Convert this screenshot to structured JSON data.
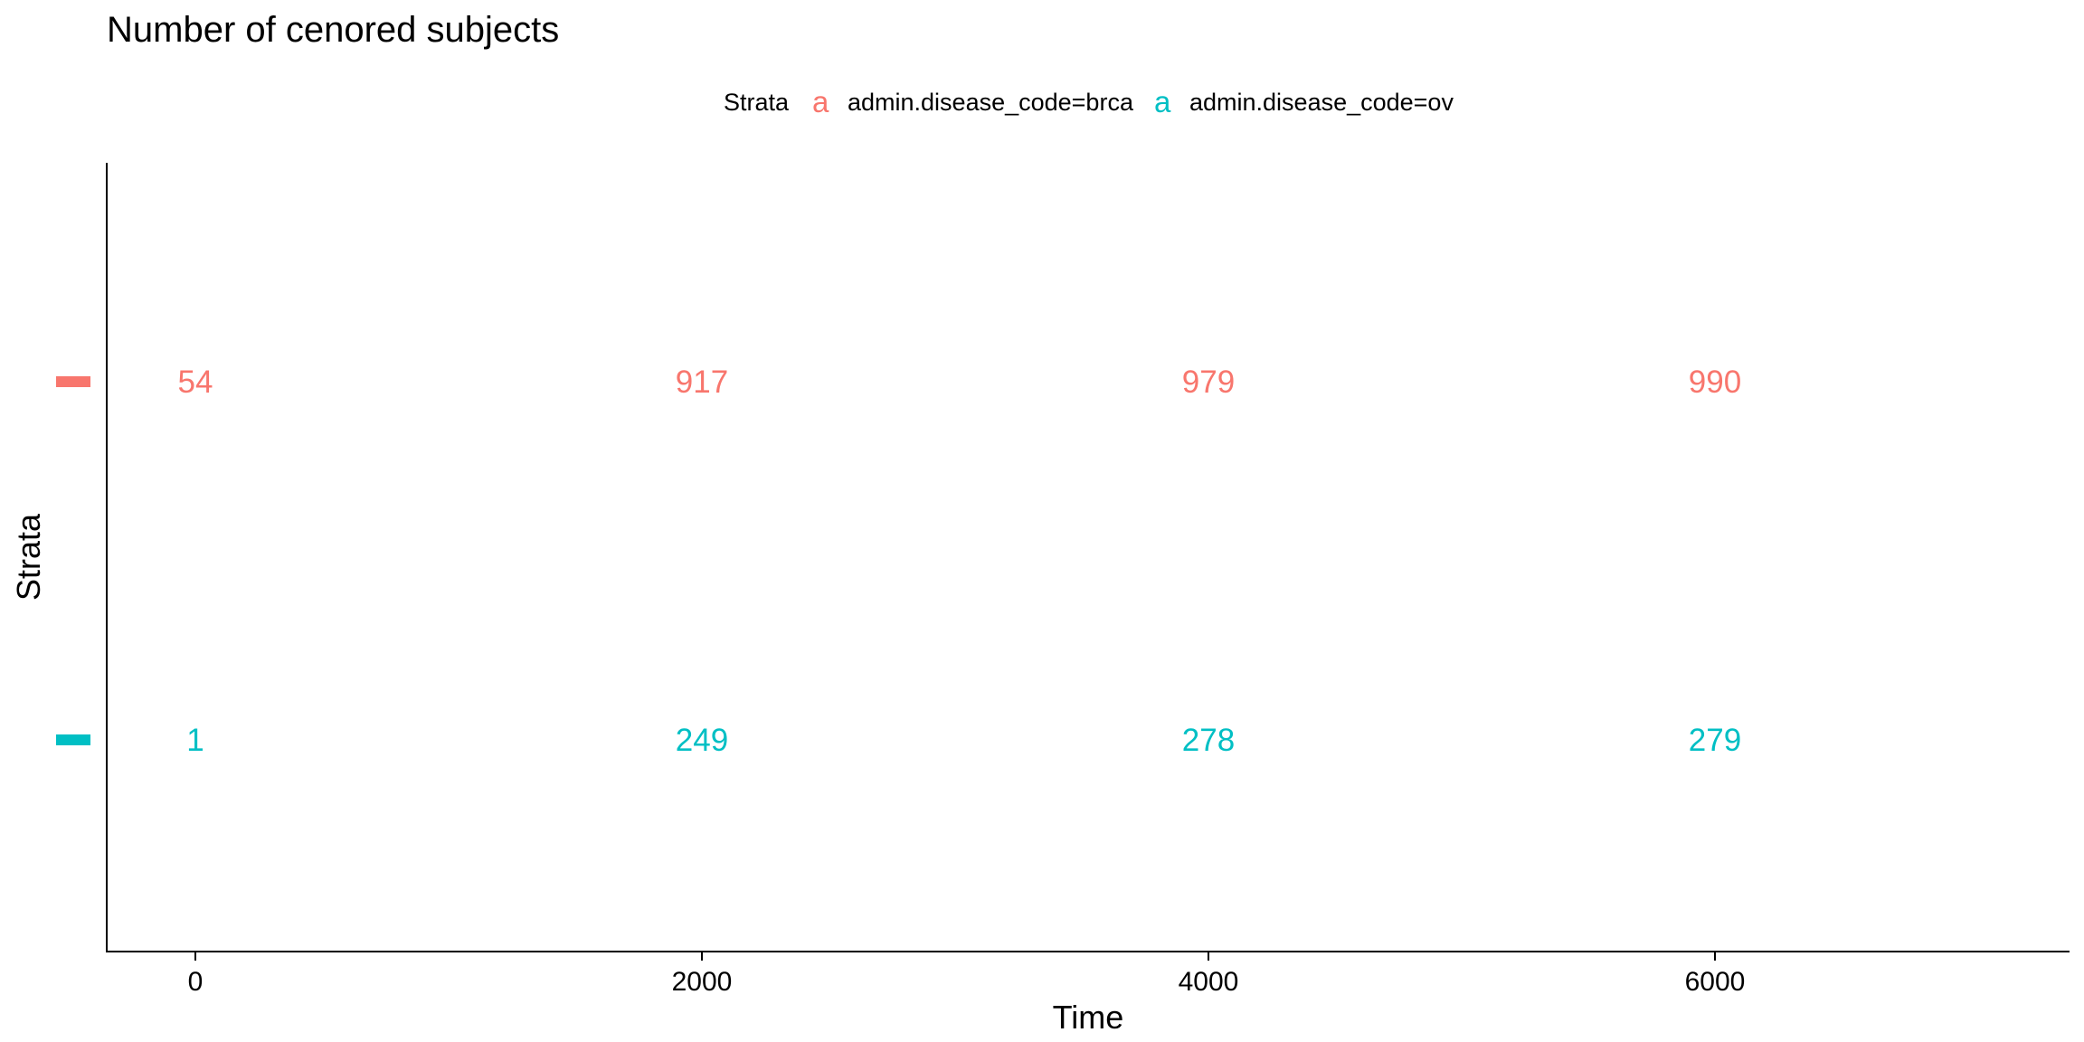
{
  "chart_data": {
    "type": "table",
    "title": "Number of cenored subjects",
    "xlabel": "Time",
    "ylabel": "Strata",
    "xlim": [
      -350,
      7400
    ],
    "x_ticks": [
      0,
      2000,
      4000,
      6000
    ],
    "x_tick_labels": [
      "0",
      "2000",
      "4000",
      "6000"
    ],
    "grid": false,
    "legend": {
      "title": "Strata",
      "position": "top",
      "key_glyph": "a",
      "entries": [
        {
          "label": "admin.disease_code=brca",
          "color": "#F8766D"
        },
        {
          "label": "admin.disease_code=ov",
          "color": "#00BFC4"
        }
      ]
    },
    "series": [
      {
        "name": "admin.disease_code=brca",
        "color": "#F8766D",
        "x": [
          0,
          2000,
          4000,
          6000
        ],
        "values": [
          54,
          917,
          979,
          990
        ]
      },
      {
        "name": "admin.disease_code=ov",
        "color": "#00BFC4",
        "x": [
          0,
          2000,
          4000,
          6000
        ],
        "values": [
          1,
          249,
          278,
          279
        ]
      }
    ]
  }
}
